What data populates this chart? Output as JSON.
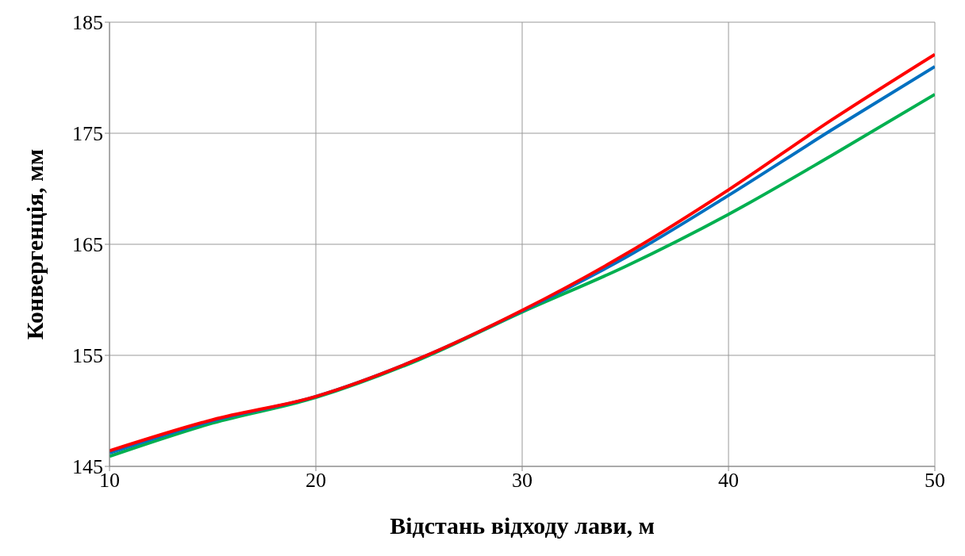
{
  "chart_data": {
    "type": "line",
    "xlabel": "Відстань відходу лави, м",
    "ylabel": "Конвергенція, мм",
    "x": [
      10,
      15,
      20,
      25,
      30,
      35,
      40,
      45,
      50
    ],
    "series": [
      {
        "color": "#00b050",
        "values": [
          145.9,
          148.9,
          151.2,
          154.6,
          158.9,
          163.0,
          167.7,
          173.0,
          178.5
        ]
      },
      {
        "color": "#0070c0",
        "values": [
          146.2,
          149.1,
          151.3,
          154.7,
          159.0,
          163.8,
          169.4,
          175.3,
          181.0
        ]
      },
      {
        "color": "#ff0000",
        "values": [
          146.4,
          149.2,
          151.3,
          154.7,
          159.05,
          164.1,
          169.9,
          176.2,
          182.1
        ]
      }
    ],
    "xlim": [
      10,
      50
    ],
    "xticks": [
      10,
      20,
      30,
      40,
      50
    ],
    "ylim": [
      145,
      185
    ],
    "yticks": [
      145,
      155,
      165,
      175,
      185
    ],
    "grid": true,
    "legend": false,
    "marker": "none",
    "line_style": "solid"
  }
}
